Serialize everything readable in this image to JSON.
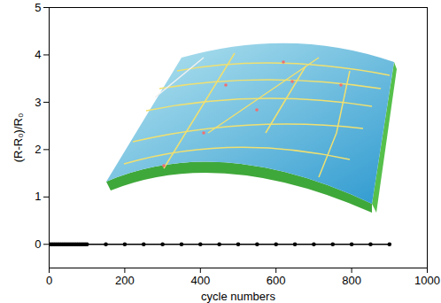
{
  "chart_data": {
    "type": "line",
    "x_label": "cycle numbers",
    "y_label": "(R-R₀)/R₀",
    "x": [
      0,
      5,
      10,
      15,
      20,
      25,
      30,
      35,
      40,
      45,
      50,
      55,
      60,
      65,
      70,
      75,
      80,
      85,
      90,
      95,
      100,
      150,
      200,
      250,
      300,
      350,
      400,
      450,
      500,
      550,
      600,
      650,
      700,
      750,
      800,
      850,
      900
    ],
    "values": [
      0,
      0,
      0,
      0,
      0,
      0,
      0,
      0,
      0,
      0,
      0,
      0,
      0,
      0,
      0,
      0,
      0,
      0,
      0,
      0,
      0,
      0,
      0,
      0,
      0,
      0,
      0,
      0,
      0,
      0,
      0,
      0,
      0,
      0,
      0,
      0,
      0
    ],
    "color": "#000000",
    "marker": "circle",
    "xlim": [
      0,
      1000
    ],
    "xticks": [
      0,
      200,
      400,
      600,
      800,
      1000
    ],
    "ylim": [
      -0.5,
      5
    ],
    "yticks": [
      0,
      1,
      2,
      3,
      4,
      5
    ]
  }
}
